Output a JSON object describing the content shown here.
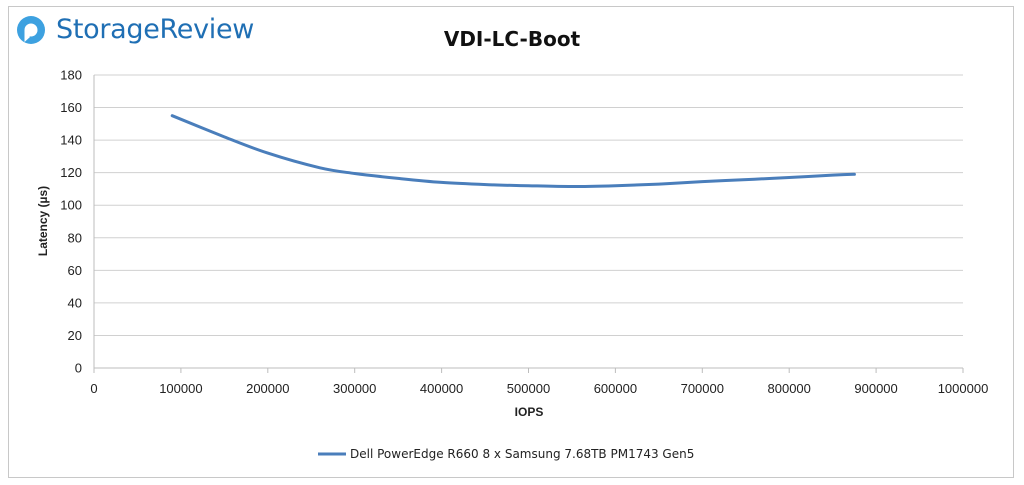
{
  "brand": {
    "name": "StorageReview",
    "color": "#1f6fb4"
  },
  "chart_data": {
    "type": "line",
    "title": "VDI-LC-Boot",
    "xlabel": "IOPS",
    "ylabel": "Latency (µs)",
    "xlim": [
      0,
      1000000
    ],
    "ylim": [
      0,
      180
    ],
    "xticks": [
      0,
      100000,
      200000,
      300000,
      400000,
      500000,
      600000,
      700000,
      800000,
      900000,
      1000000
    ],
    "yticks": [
      0,
      20,
      40,
      60,
      80,
      100,
      120,
      140,
      160,
      180
    ],
    "grid": true,
    "legend_position": "bottom",
    "series": [
      {
        "name": "Dell PowerEdge R660 8 x Samsung 7.68TB PM1743 Gen5",
        "color": "#4a7ebb",
        "x": [
          90000,
          150000,
          200000,
          260000,
          300000,
          350000,
          400000,
          460000,
          500000,
          550000,
          600000,
          650000,
          700000,
          760000,
          800000,
          850000,
          875000
        ],
        "y": [
          155,
          142,
          132,
          123,
          119.5,
          116.5,
          114,
          112.5,
          112,
          111.5,
          112,
          113,
          114.5,
          116,
          117,
          118.5,
          119
        ]
      }
    ]
  }
}
